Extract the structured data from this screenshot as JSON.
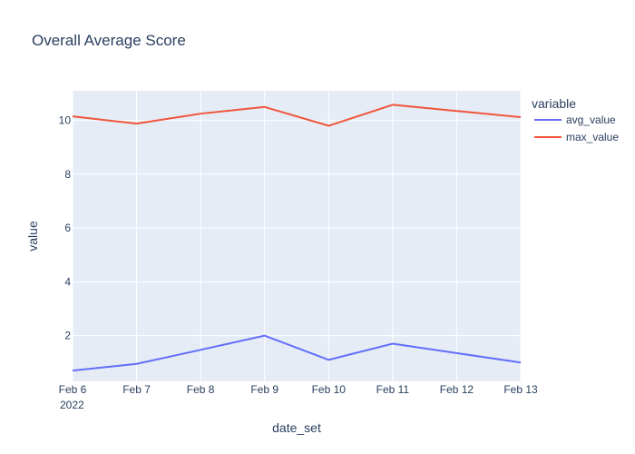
{
  "chart_data": {
    "type": "line",
    "title": "Overall Average Score",
    "xlabel": "date_set",
    "ylabel": "value",
    "categories": [
      "Feb 6",
      "Feb 7",
      "Feb 8",
      "Feb 9",
      "Feb 10",
      "Feb 11",
      "Feb 12",
      "Feb 13"
    ],
    "x_year_label": "2022",
    "yticks": [
      2,
      4,
      6,
      8,
      10
    ],
    "ylim": [
      0.3,
      11.1
    ],
    "legend_title": "variable",
    "legend_position": "top-right",
    "grid": true,
    "series": [
      {
        "name": "avg_value",
        "color": "#636efa",
        "values": [
          0.7,
          0.95,
          1.47,
          2.0,
          1.1,
          1.7,
          1.35,
          1.0
        ]
      },
      {
        "name": "max_value",
        "color": "#ef553b",
        "values": [
          10.15,
          9.88,
          10.25,
          10.5,
          9.8,
          10.58,
          10.35,
          10.12
        ]
      }
    ]
  },
  "colors": {
    "plot_bg": "#e5ecf6",
    "grid": "#ffffff",
    "text": "#2a3f5f"
  }
}
